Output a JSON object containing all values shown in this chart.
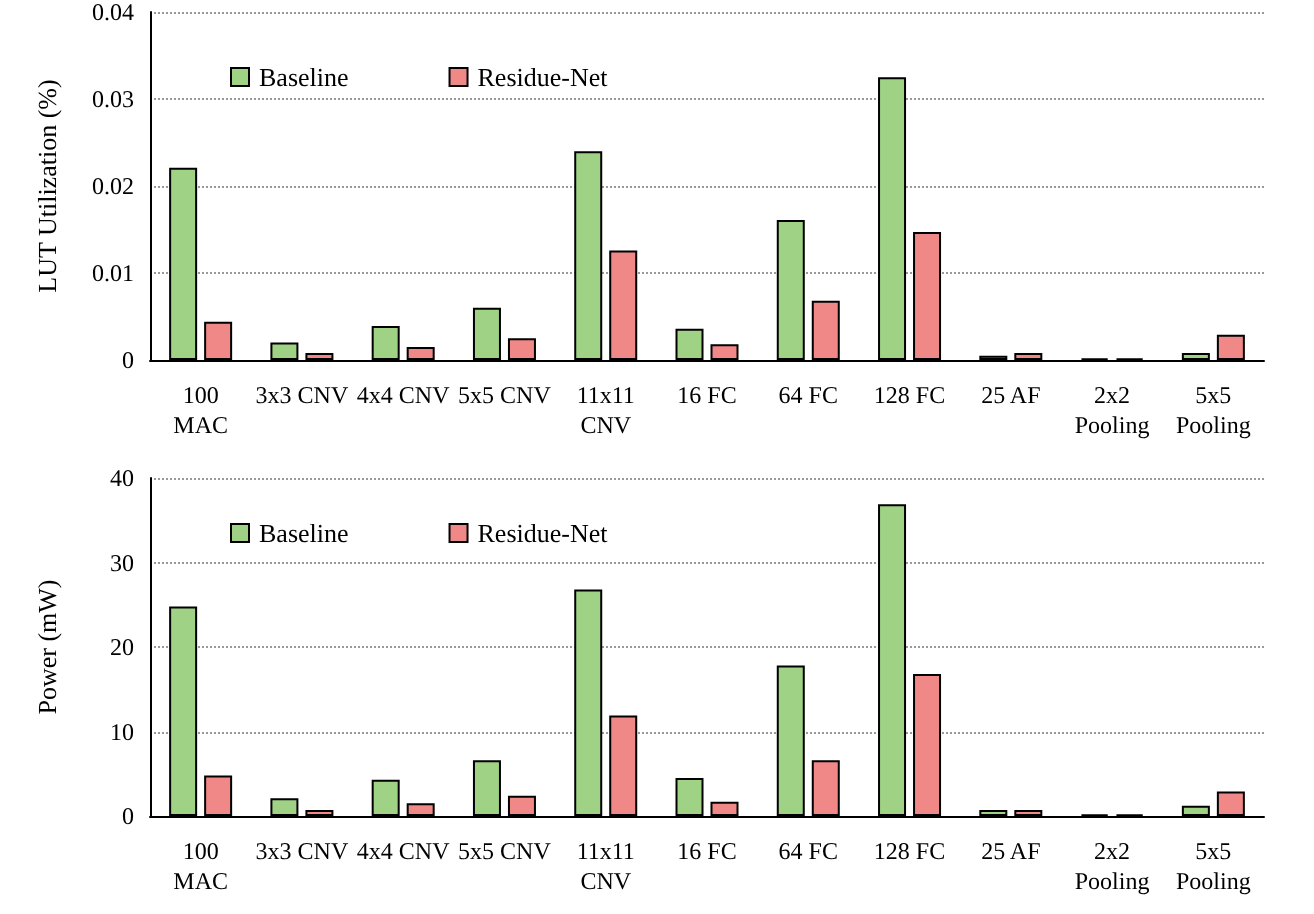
{
  "chart_data": [
    {
      "type": "bar",
      "ylabel": "LUT Utilization (%)",
      "categories": [
        "100\nMAC",
        "3x3 CNV",
        "4x4 CNV",
        "5x5 CNV",
        "11x11\nCNV",
        "16 FC",
        "64 FC",
        "128 FC",
        "25 AF",
        "2x2\nPooling",
        "5x5\nPooling"
      ],
      "series": [
        {
          "name": "Baseline",
          "color": "#a0d286",
          "values": [
            0.0221,
            0.002,
            0.0039,
            0.006,
            0.024,
            0.0036,
            0.0161,
            0.0325,
            0.0005,
            0.0002,
            0.0008
          ]
        },
        {
          "name": "Residue-Net",
          "color": "#f08888",
          "values": [
            0.0044,
            0.0008,
            0.0015,
            0.0025,
            0.0126,
            0.0018,
            0.0068,
            0.0147,
            0.0008,
            0.0002,
            0.0029
          ]
        }
      ],
      "ylim": [
        0,
        0.04
      ],
      "yticks": [
        0,
        0.01,
        0.02,
        0.03,
        0.04
      ],
      "grid": "y",
      "legend": "top left"
    },
    {
      "type": "bar",
      "ylabel": "Power (mW)",
      "categories": [
        "100\nMAC",
        "3x3 CNV",
        "4x4 CNV",
        "5x5 CNV",
        "11x11\nCNV",
        "16 FC",
        "64 FC",
        "128 FC",
        "25 AF",
        "2x2\nPooling",
        "5x5\nPooling"
      ],
      "series": [
        {
          "name": "Baseline",
          "color": "#a0d286",
          "values": [
            24.8,
            2.1,
            4.3,
            6.6,
            26.8,
            4.5,
            17.8,
            36.9,
            0.7,
            0.2,
            1.2
          ]
        },
        {
          "name": "Residue-Net",
          "color": "#f08888",
          "values": [
            4.8,
            0.7,
            1.5,
            2.4,
            11.9,
            1.7,
            6.6,
            16.8,
            0.7,
            0.2,
            2.9
          ]
        }
      ],
      "ylim": [
        0,
        40
      ],
      "yticks": [
        0,
        10,
        20,
        30,
        40
      ],
      "grid": "y",
      "legend": "top left"
    }
  ]
}
